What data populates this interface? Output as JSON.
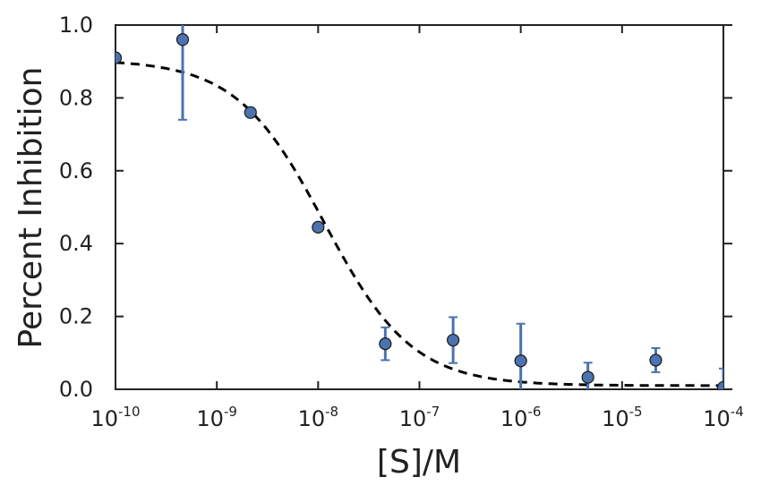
{
  "chart_data": {
    "type": "scatter",
    "xlabel": "[S]/M",
    "ylabel": "Percent Inhibition",
    "x_scale": "log",
    "xlim": [
      1e-10,
      0.0001
    ],
    "ylim": [
      0.0,
      1.0
    ],
    "grid": false,
    "x_ticks": [
      {
        "base": "10",
        "exp": "-10",
        "value": 1e-10
      },
      {
        "base": "10",
        "exp": "-9",
        "value": 1e-09
      },
      {
        "base": "10",
        "exp": "-8",
        "value": 1e-08
      },
      {
        "base": "10",
        "exp": "-7",
        "value": 1e-07
      },
      {
        "base": "10",
        "exp": "-6",
        "value": 1e-06
      },
      {
        "base": "10",
        "exp": "-5",
        "value": 1e-05
      },
      {
        "base": "10",
        "exp": "-4",
        "value": 0.0001
      }
    ],
    "y_ticks": [
      "0.0",
      "0.2",
      "0.4",
      "0.6",
      "0.8",
      "1.0"
    ],
    "y_tick_values": [
      0.0,
      0.2,
      0.4,
      0.6,
      0.8,
      1.0
    ],
    "series": [
      {
        "marker_color": "#4c72b0",
        "points": [
          {
            "x": 1e-10,
            "y": 0.91,
            "err": 0.0
          },
          {
            "x": 4.6e-10,
            "y": 0.96,
            "err": 0.22
          },
          {
            "x": 2.15e-09,
            "y": 0.76,
            "err": 0.0
          },
          {
            "x": 1e-08,
            "y": 0.445,
            "err": 0.0
          },
          {
            "x": 4.6e-08,
            "y": 0.125,
            "err": 0.045
          },
          {
            "x": 2.15e-07,
            "y": 0.135,
            "err": 0.063
          },
          {
            "x": 1e-06,
            "y": 0.078,
            "err": 0.102
          },
          {
            "x": 4.6e-06,
            "y": 0.033,
            "err": 0.04
          },
          {
            "x": 2.15e-05,
            "y": 0.08,
            "err": 0.033
          },
          {
            "x": 0.0001,
            "y": 0.005,
            "err": 0.052
          }
        ]
      }
    ],
    "fit_curve": {
      "style": "dashed",
      "color": "#000000",
      "top": 0.905,
      "bottom": 0.01,
      "ic50": 1.15e-08,
      "hill": 1.0
    }
  }
}
